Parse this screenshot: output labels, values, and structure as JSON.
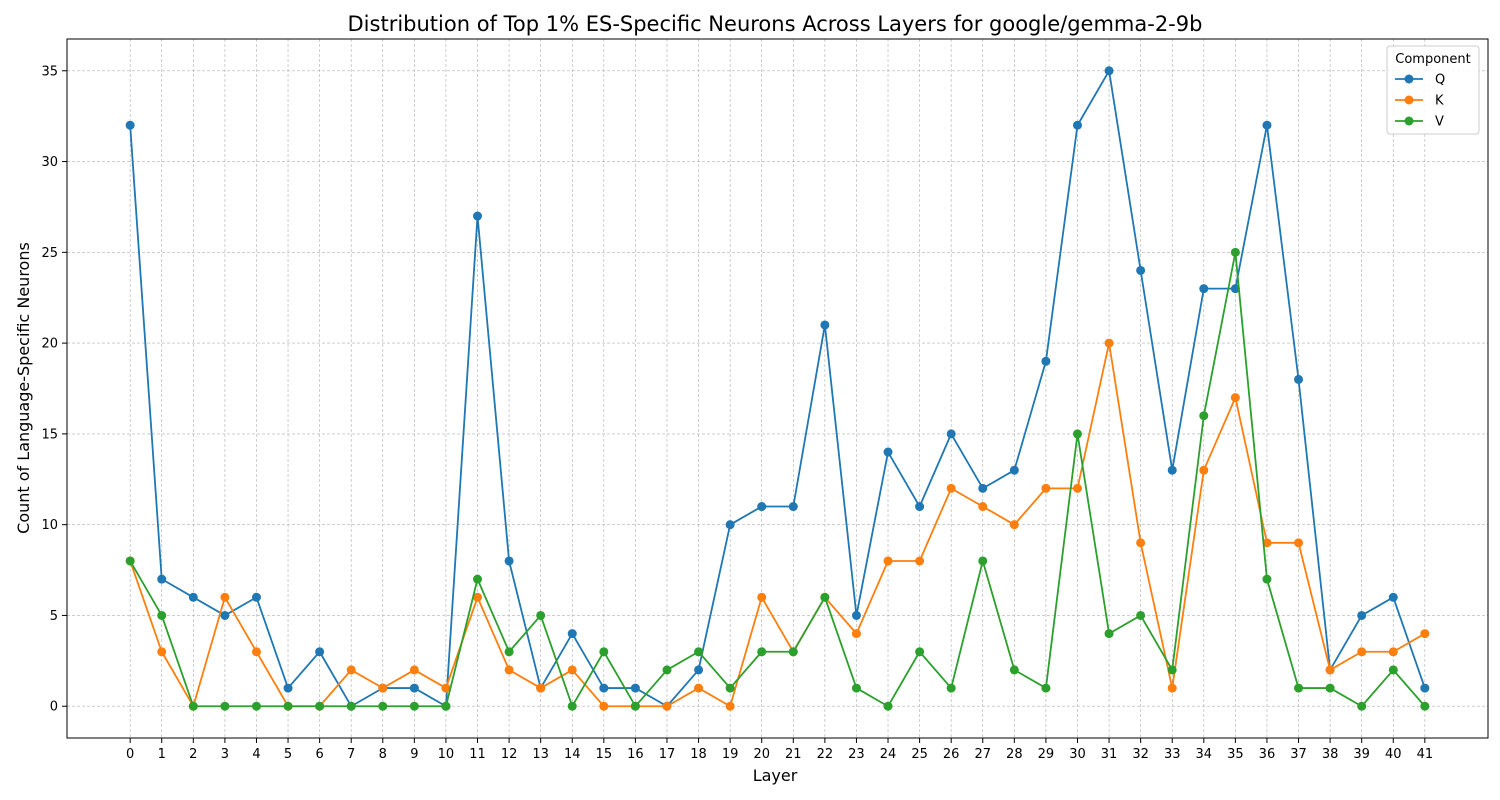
{
  "chart_data": {
    "type": "line",
    "title": "Distribution of Top 1% ES-Specific Neurons Across Layers for google/gemma-2-9b",
    "xlabel": "Layer",
    "ylabel": "Count of Language-Specific Neurons",
    "x": [
      0,
      1,
      2,
      3,
      4,
      5,
      6,
      7,
      8,
      9,
      10,
      11,
      12,
      13,
      14,
      15,
      16,
      17,
      18,
      19,
      20,
      21,
      22,
      23,
      24,
      25,
      26,
      27,
      28,
      29,
      30,
      31,
      32,
      33,
      34,
      35,
      36,
      37,
      38,
      39,
      40,
      41
    ],
    "xlim": [
      -2,
      43
    ],
    "ylim": [
      -1.75,
      36.75
    ],
    "yticks": [
      0,
      5,
      10,
      15,
      20,
      25,
      30,
      35
    ],
    "grid": true,
    "legend": {
      "title": "Component",
      "placement": "top-right"
    },
    "series": [
      {
        "name": "Q",
        "color": "#1f77b4",
        "values": [
          32,
          7,
          6,
          5,
          6,
          1,
          3,
          0,
          1,
          1,
          0,
          27,
          8,
          1,
          4,
          1,
          1,
          0,
          2,
          10,
          11,
          11,
          21,
          5,
          14,
          11,
          15,
          12,
          13,
          19,
          32,
          35,
          24,
          13,
          23,
          23,
          32,
          18,
          2,
          5,
          6,
          1
        ]
      },
      {
        "name": "K",
        "color": "#ff7f0e",
        "values": [
          8,
          3,
          0,
          6,
          3,
          0,
          0,
          2,
          1,
          2,
          1,
          6,
          2,
          1,
          2,
          0,
          0,
          0,
          1,
          0,
          6,
          3,
          6,
          4,
          8,
          8,
          12,
          11,
          10,
          12,
          12,
          20,
          9,
          1,
          13,
          17,
          9,
          9,
          2,
          3,
          3,
          4
        ]
      },
      {
        "name": "V",
        "color": "#2ca02c",
        "values": [
          8,
          5,
          0,
          0,
          0,
          0,
          0,
          0,
          0,
          0,
          0,
          7,
          3,
          5,
          0,
          3,
          0,
          2,
          3,
          1,
          3,
          3,
          6,
          1,
          0,
          3,
          1,
          8,
          2,
          1,
          15,
          4,
          5,
          2,
          16,
          25,
          7,
          1,
          1,
          0,
          2,
          0
        ]
      }
    ]
  }
}
